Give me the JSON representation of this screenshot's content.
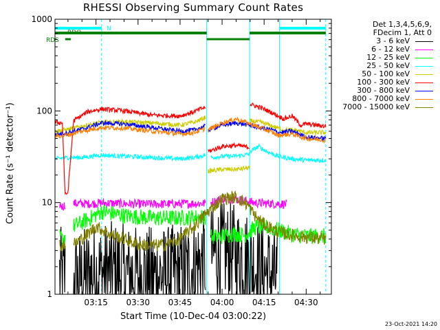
{
  "colors": {
    "background": "#ffffff",
    "axes": "#000000",
    "flag_line": "#00ffff",
    "flag_bar": "#008000"
  },
  "chart_data": {
    "type": "line",
    "title": "RHESSI Observing Summary Count Rates",
    "xlabel": "Start Time (10-Dec-04 03:00:22)",
    "ylabel": "Count Rate (s⁻¹ detector⁻¹)",
    "x_tick_labels": [
      "03:15",
      "03:30",
      "03:45",
      "04:00",
      "04:15",
      "04:30"
    ],
    "x_range": [
      "03:00:22",
      "04:39:00"
    ],
    "y_scale": "log",
    "y_range": [
      1,
      1000
    ],
    "y_tick_labels": [
      "1",
      "10",
      "100",
      "1000"
    ],
    "grid": false,
    "legend_position": "right",
    "legend_header": [
      "Det 1,3,4,5,6,9,",
      "FDecim 1, Att 0"
    ],
    "flags": [
      {
        "name": "N",
        "color": "#00ffff",
        "intervals": [
          [
            "03:00:22",
            "03:17:00"
          ],
          [
            "04:20:30",
            "04:37:00"
          ]
        ]
      },
      {
        "name": "RDO",
        "color": "#008000",
        "intervals": [
          [
            "03:00:22",
            "03:54:30"
          ],
          [
            "04:09:50",
            "04:37:00"
          ]
        ]
      },
      {
        "name": "RDS",
        "color": "#008000",
        "intervals": [
          [
            "03:04:00",
            "03:06:00"
          ],
          [
            "03:54:30",
            "04:09:50"
          ]
        ]
      }
    ],
    "vertical_markers": [
      {
        "time": "03:00:22",
        "color": "#00ffff",
        "style": "solid"
      },
      {
        "time": "03:17:00",
        "color": "#00ffff",
        "style": "dashed"
      },
      {
        "time": "03:54:30",
        "color": "#00ffff",
        "style": "solid"
      },
      {
        "time": "04:09:50",
        "color": "#00ffff",
        "style": "solid"
      },
      {
        "time": "04:20:30",
        "color": "#00ffff",
        "style": "solid"
      },
      {
        "time": "04:37:00",
        "color": "#00ffff",
        "style": "dashed"
      }
    ],
    "series": [
      {
        "name": "3 - 6 keV",
        "color": "#000000",
        "segments": [
          {
            "x": [
              "03:02",
              "03:03",
              "03:04"
            ],
            "y": [
              1.6,
              1.5,
              1.6
            ]
          },
          {
            "x": [
              "03:07",
              "03:12",
              "03:20",
              "03:30",
              "03:40",
              "03:48",
              "03:52",
              "03:54"
            ],
            "y": [
              1.4,
              1.6,
              1.8,
              1.6,
              1.6,
              1.8,
              2.2,
              2.4
            ]
          },
          {
            "x": [
              "03:56",
              "04:00",
              "04:04",
              "04:08",
              "04:12",
              "04:15",
              "04:18",
              "04:20"
            ],
            "y": [
              2.7,
              2.9,
              2.8,
              2.5,
              2.0,
              1.8,
              1.6,
              1.4
            ]
          }
        ]
      },
      {
        "name": "6 - 12 keV",
        "color": "#ff00ff",
        "segments": [
          {
            "x": [
              "03:02",
              "03:03",
              "03:04"
            ],
            "y": [
              9.5,
              9.0,
              9.5
            ]
          },
          {
            "x": [
              "03:07",
              "03:12",
              "03:17",
              "03:25",
              "03:35",
              "03:45",
              "03:54"
            ],
            "y": [
              9.8,
              9.7,
              9.9,
              9.7,
              9.6,
              9.7,
              9.8
            ]
          },
          {
            "x": [
              "03:56",
              "04:00",
              "04:04",
              "04:08",
              "04:12",
              "04:16",
              "04:20",
              "04:23"
            ],
            "y": [
              10.0,
              11.0,
              11.0,
              10.5,
              9.9,
              9.8,
              9.7,
              9.6
            ]
          }
        ]
      },
      {
        "name": "12 - 25 keV",
        "color": "#00ff00",
        "segments": [
          {
            "x": [
              "03:02",
              "03:03",
              "03:04"
            ],
            "y": [
              4.2,
              4.0,
              4.3
            ]
          },
          {
            "x": [
              "03:07",
              "03:12",
              "03:17",
              "03:25",
              "03:35",
              "03:45",
              "03:54"
            ],
            "y": [
              5.5,
              6.5,
              8.0,
              7.2,
              6.8,
              6.8,
              7.0
            ]
          },
          {
            "x": [
              "03:56",
              "04:00",
              "04:04",
              "04:08",
              "04:12",
              "04:16",
              "04:20",
              "04:25",
              "04:30",
              "04:37"
            ],
            "y": [
              4.2,
              4.3,
              4.6,
              4.4,
              5.4,
              5.4,
              5.0,
              4.5,
              4.3,
              4.3
            ]
          }
        ]
      },
      {
        "name": "25 - 50 keV",
        "color": "#00ffff",
        "segments": [
          {
            "x": [
              "03:00:30",
              "03:05",
              "03:10",
              "03:17",
              "03:25",
              "03:35",
              "03:45",
              "03:50",
              "03:54"
            ],
            "y": [
              30,
              31,
              31,
              33,
              32,
              31,
              30,
              31,
              33
            ]
          },
          {
            "x": [
              "03:56",
              "04:00",
              "04:04",
              "04:08",
              "04:09:50"
            ],
            "y": [
              31,
              32,
              32,
              33,
              34
            ]
          },
          {
            "x": [
              "04:10",
              "04:13",
              "04:16",
              "04:20",
              "04:25",
              "04:30",
              "04:37"
            ],
            "y": [
              36,
              41,
              36,
              32,
              30,
              29,
              29
            ]
          }
        ]
      },
      {
        "name": "50 - 100 keV",
        "color": "#cccc00",
        "segments": [
          {
            "x": [
              "03:00:30",
              "03:05",
              "03:10",
              "03:17",
              "03:25",
              "03:35",
              "03:45",
              "03:50",
              "03:54"
            ],
            "y": [
              60,
              63,
              68,
              75,
              76,
              74,
              70,
              75,
              85
            ]
          },
          {
            "x": [
              "03:55",
              "04:00",
              "04:05",
              "04:09:50"
            ],
            "y": [
              22,
              23,
              23,
              24
            ]
          },
          {
            "x": [
              "04:10",
              "04:14",
              "04:18",
              "04:22",
              "04:26",
              "04:30",
              "04:37"
            ],
            "y": [
              78,
              75,
              68,
              62,
              62,
              58,
              58
            ]
          }
        ]
      },
      {
        "name": "100 - 300 keV",
        "color": "#ff0000",
        "segments": [
          {
            "x": [
              "03:00:30",
              "03:03",
              "03:04",
              "03:05",
              "03:07",
              "03:12",
              "03:17",
              "03:25",
              "03:35",
              "03:45",
              "03:50",
              "03:54"
            ],
            "y": [
              75,
              74,
              12,
              13,
              78,
              98,
              105,
              100,
              90,
              88,
              98,
              110
            ]
          },
          {
            "x": [
              "03:55",
              "04:00",
              "04:05",
              "04:09:50"
            ],
            "y": [
              36,
              41,
              42,
              40
            ]
          },
          {
            "x": [
              "04:10",
              "04:14",
              "04:18",
              "04:22",
              "04:25",
              "04:28",
              "04:30",
              "04:37"
            ],
            "y": [
              118,
              108,
              95,
              82,
              88,
              70,
              72,
              68
            ]
          }
        ]
      },
      {
        "name": "300 - 800 keV",
        "color": "#0000ff",
        "segments": [
          {
            "x": [
              "03:00:30",
              "03:05",
              "03:10",
              "03:17",
              "03:25",
              "03:35",
              "03:45",
              "03:50",
              "03:54"
            ],
            "y": [
              55,
              58,
              63,
              74,
              72,
              66,
              60,
              62,
              68
            ]
          },
          {
            "x": [
              "03:55",
              "04:00",
              "04:05",
              "04:10",
              "04:14",
              "04:18",
              "04:20",
              "04:25",
              "04:30",
              "04:37"
            ],
            "y": [
              62,
              70,
              74,
              70,
              65,
              62,
              58,
              60,
              52,
              50
            ]
          }
        ]
      },
      {
        "name": "800 - 7000 keV",
        "color": "#ff8000",
        "segments": [
          {
            "x": [
              "03:00:30",
              "03:05",
              "03:10",
              "03:17",
              "03:25",
              "03:35",
              "03:45",
              "03:50",
              "03:54"
            ],
            "y": [
              53,
              55,
              60,
              66,
              65,
              60,
              56,
              58,
              64
            ]
          },
          {
            "x": [
              "03:55",
              "04:00",
              "04:05",
              "04:10",
              "04:14",
              "04:18",
              "04:20",
              "04:25",
              "04:30",
              "04:37"
            ],
            "y": [
              62,
              74,
              82,
              72,
              65,
              58,
              54,
              56,
              50,
              48
            ]
          }
        ]
      },
      {
        "name": "7000 - 15000 keV",
        "color": "#808000",
        "segments": [
          {
            "x": [
              "03:02",
              "03:03",
              "03:04"
            ],
            "y": [
              3.5,
              3.4,
              3.6
            ]
          },
          {
            "x": [
              "03:07",
              "03:12",
              "03:15",
              "03:20",
              "03:25",
              "03:30",
              "03:35",
              "03:40",
              "03:45",
              "03:50",
              "03:55",
              "04:00",
              "04:05",
              "04:09",
              "04:12",
              "04:15",
              "04:20",
              "04:25",
              "04:30",
              "04:37"
            ],
            "y": [
              3.5,
              4.5,
              5.5,
              4.5,
              4.0,
              3.5,
              3.4,
              3.5,
              4.0,
              5.5,
              8.0,
              11.0,
              11.5,
              9.5,
              7.0,
              5.8,
              4.8,
              4.4,
              4.2,
              4.0
            ]
          }
        ]
      }
    ]
  },
  "footer": {
    "timestamp": "23-Oct-2021 14:20"
  }
}
